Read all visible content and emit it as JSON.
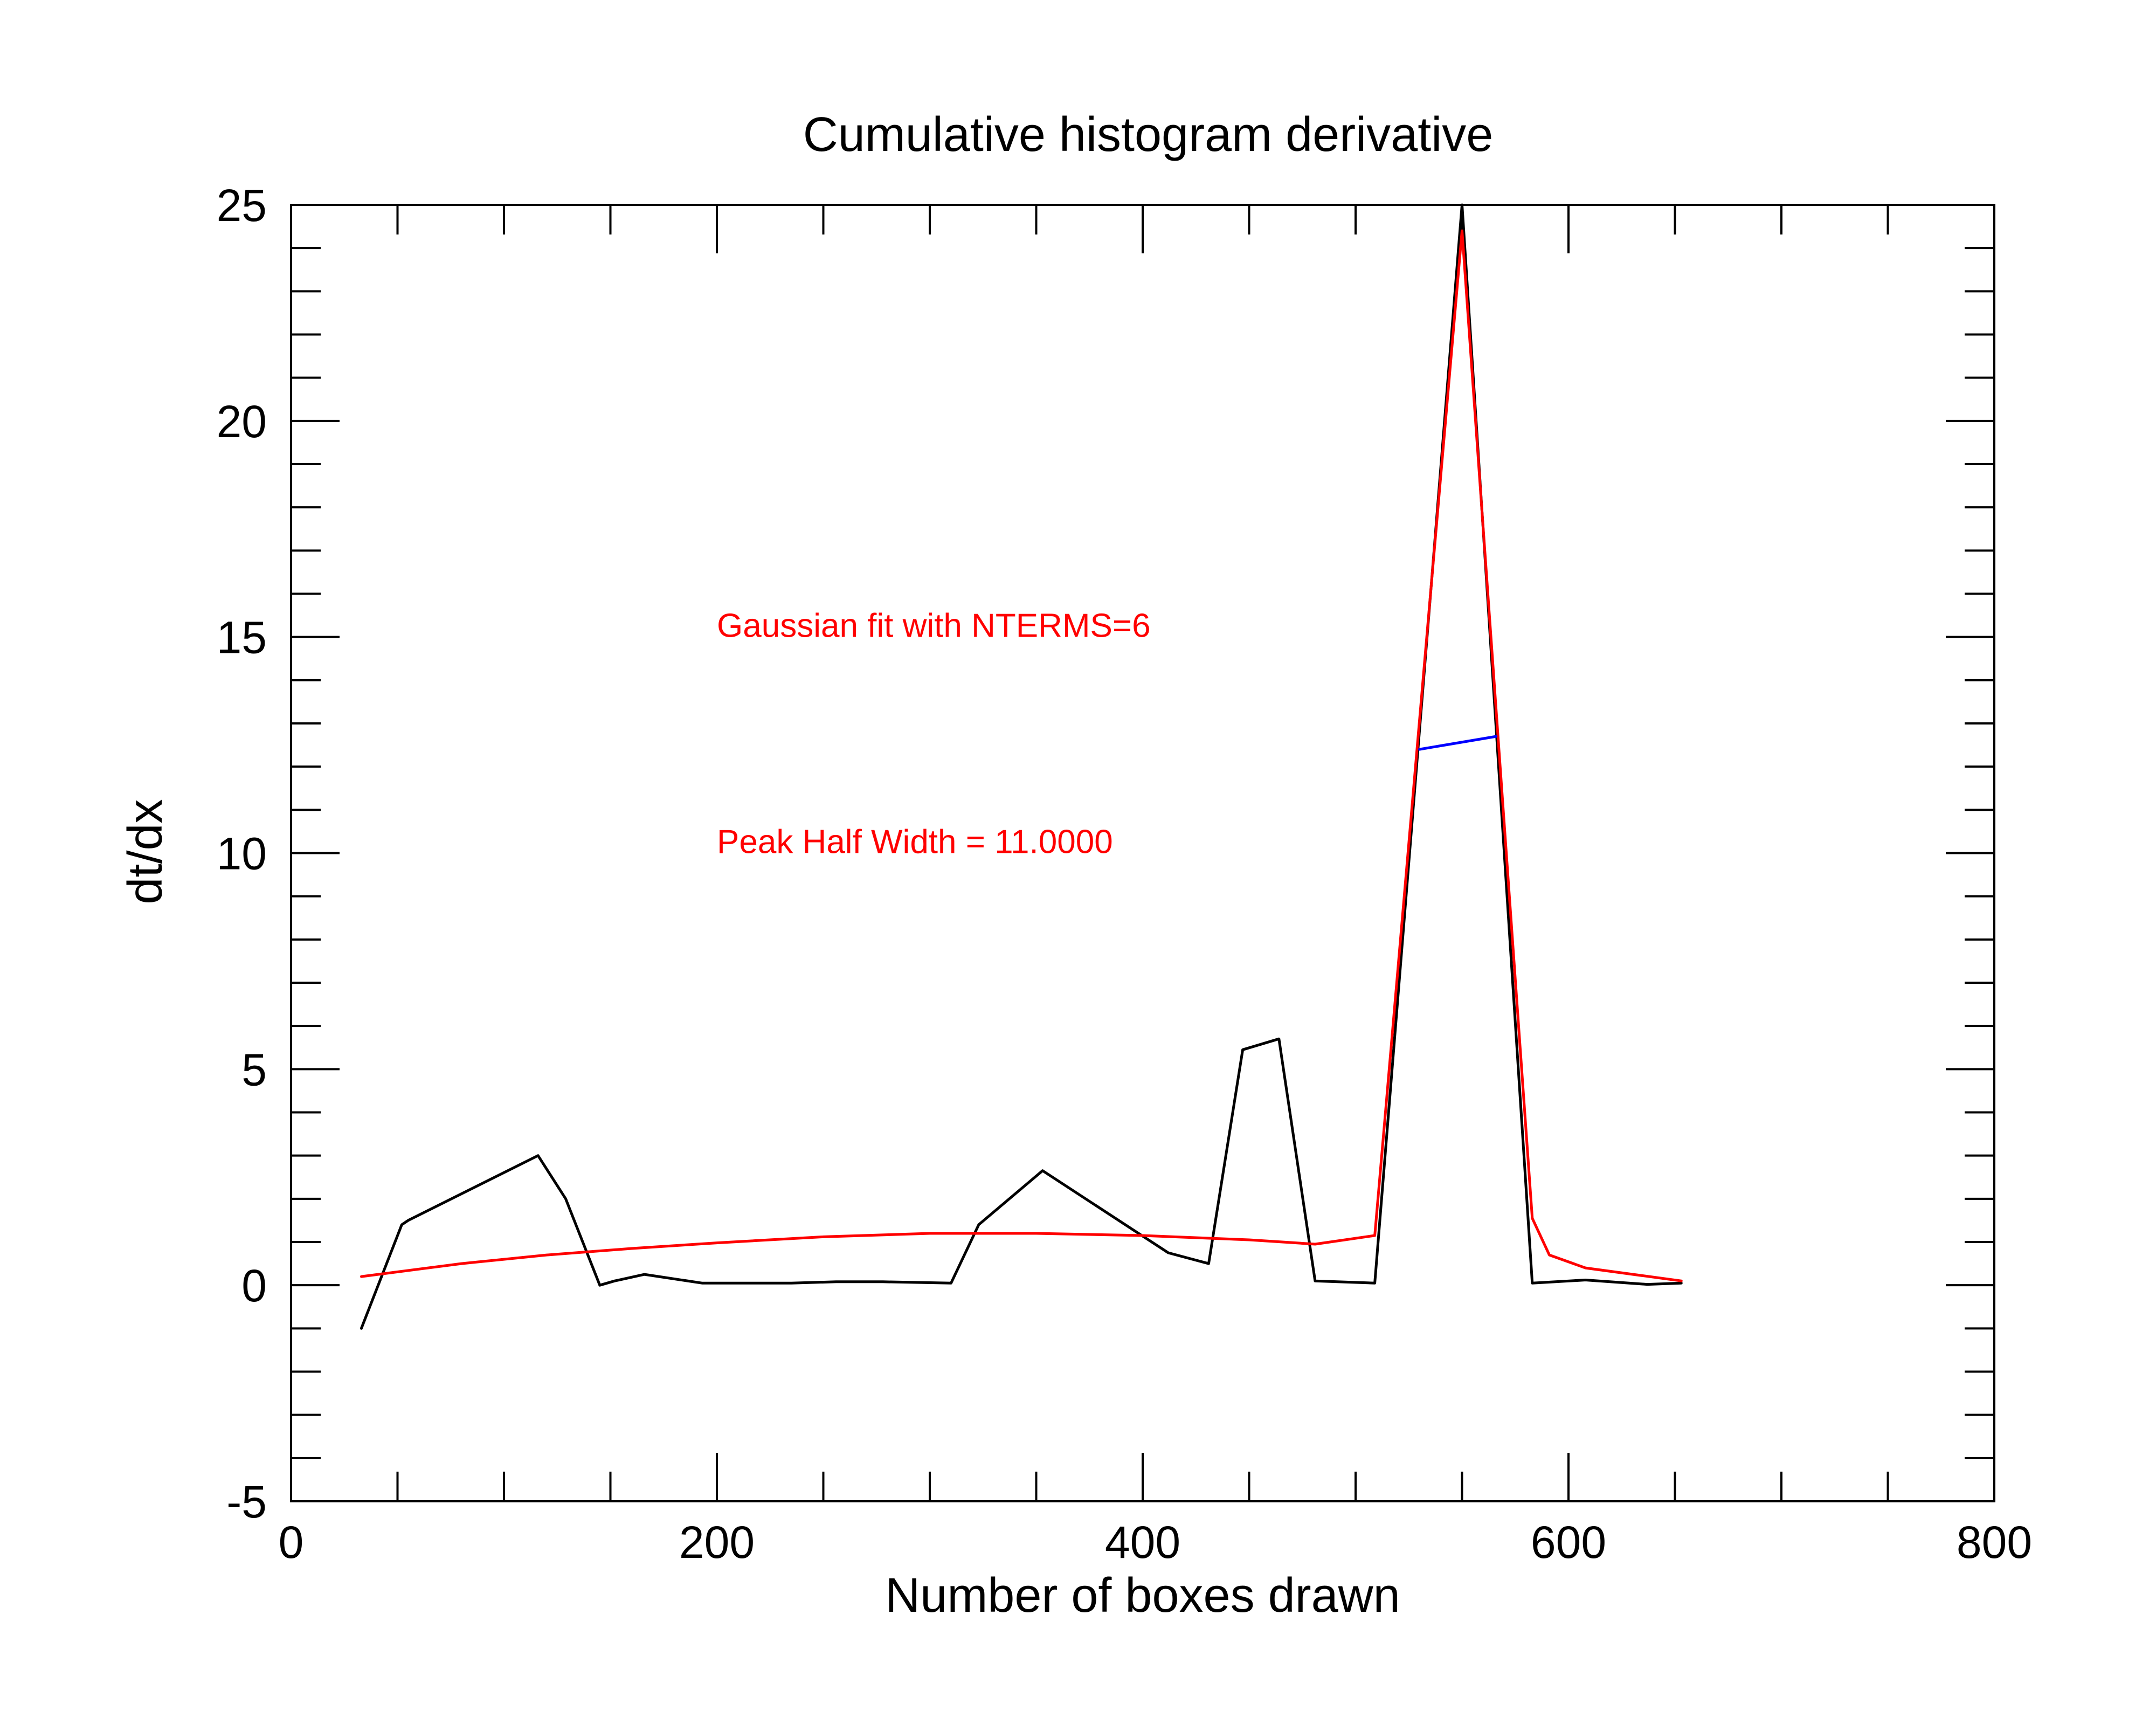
{
  "chart_data": {
    "type": "line",
    "title": "Cumulative histogram derivative",
    "xlabel": "Number of boxes drawn",
    "ylabel": "dt/dx",
    "xlim": [
      0,
      800
    ],
    "ylim": [
      -5,
      25
    ],
    "x_ticks": [
      0,
      200,
      400,
      600,
      800
    ],
    "y_ticks": [
      -5,
      0,
      5,
      10,
      15,
      20,
      25
    ],
    "x_tick_labels": [
      "0",
      "200",
      "400",
      "600",
      "800"
    ],
    "y_tick_labels": [
      "-5",
      "0",
      "5",
      "10",
      "15",
      "20",
      "25"
    ],
    "x_minor_step": 50,
    "y_minor_step": 1,
    "grid": false,
    "series": [
      {
        "color": "#000000",
        "x": [
          33,
          52,
          55,
          116,
          129,
          145,
          152,
          166,
          193,
          235,
          256,
          278,
          310,
          323,
          353,
          412,
          431,
          447,
          464,
          481,
          509,
          550,
          583,
          608,
          637,
          653
        ],
        "y": [
          -1.0,
          1.4,
          1.5,
          3.0,
          2.0,
          0.0,
          0.1,
          0.25,
          0.05,
          0.05,
          0.08,
          0.08,
          0.05,
          1.4,
          2.65,
          0.75,
          0.5,
          5.45,
          5.7,
          0.1,
          0.05,
          25.0,
          0.05,
          0.12,
          0.02,
          0.05
        ]
      },
      {
        "color": "#ff0000",
        "x": [
          33,
          80,
          120,
          160,
          200,
          250,
          300,
          350,
          400,
          450,
          481,
          509,
          550,
          583,
          591,
          608,
          653
        ],
        "y": [
          0.2,
          0.5,
          0.7,
          0.85,
          0.98,
          1.12,
          1.2,
          1.2,
          1.15,
          1.05,
          0.95,
          1.15,
          24.4,
          1.55,
          0.7,
          0.4,
          0.1
        ]
      },
      {
        "color": "#0000ff",
        "x": [
          530,
          566
        ],
        "y": [
          12.4,
          12.7
        ]
      }
    ],
    "annotations": [
      {
        "text": "Gaussian fit with NTERMS=6",
        "x": 200,
        "y": 15.0,
        "color": "#ff0000"
      },
      {
        "text": "Peak Half Width = 11.0000",
        "x": 200,
        "y": 10.0,
        "color": "#ff0000"
      }
    ]
  }
}
